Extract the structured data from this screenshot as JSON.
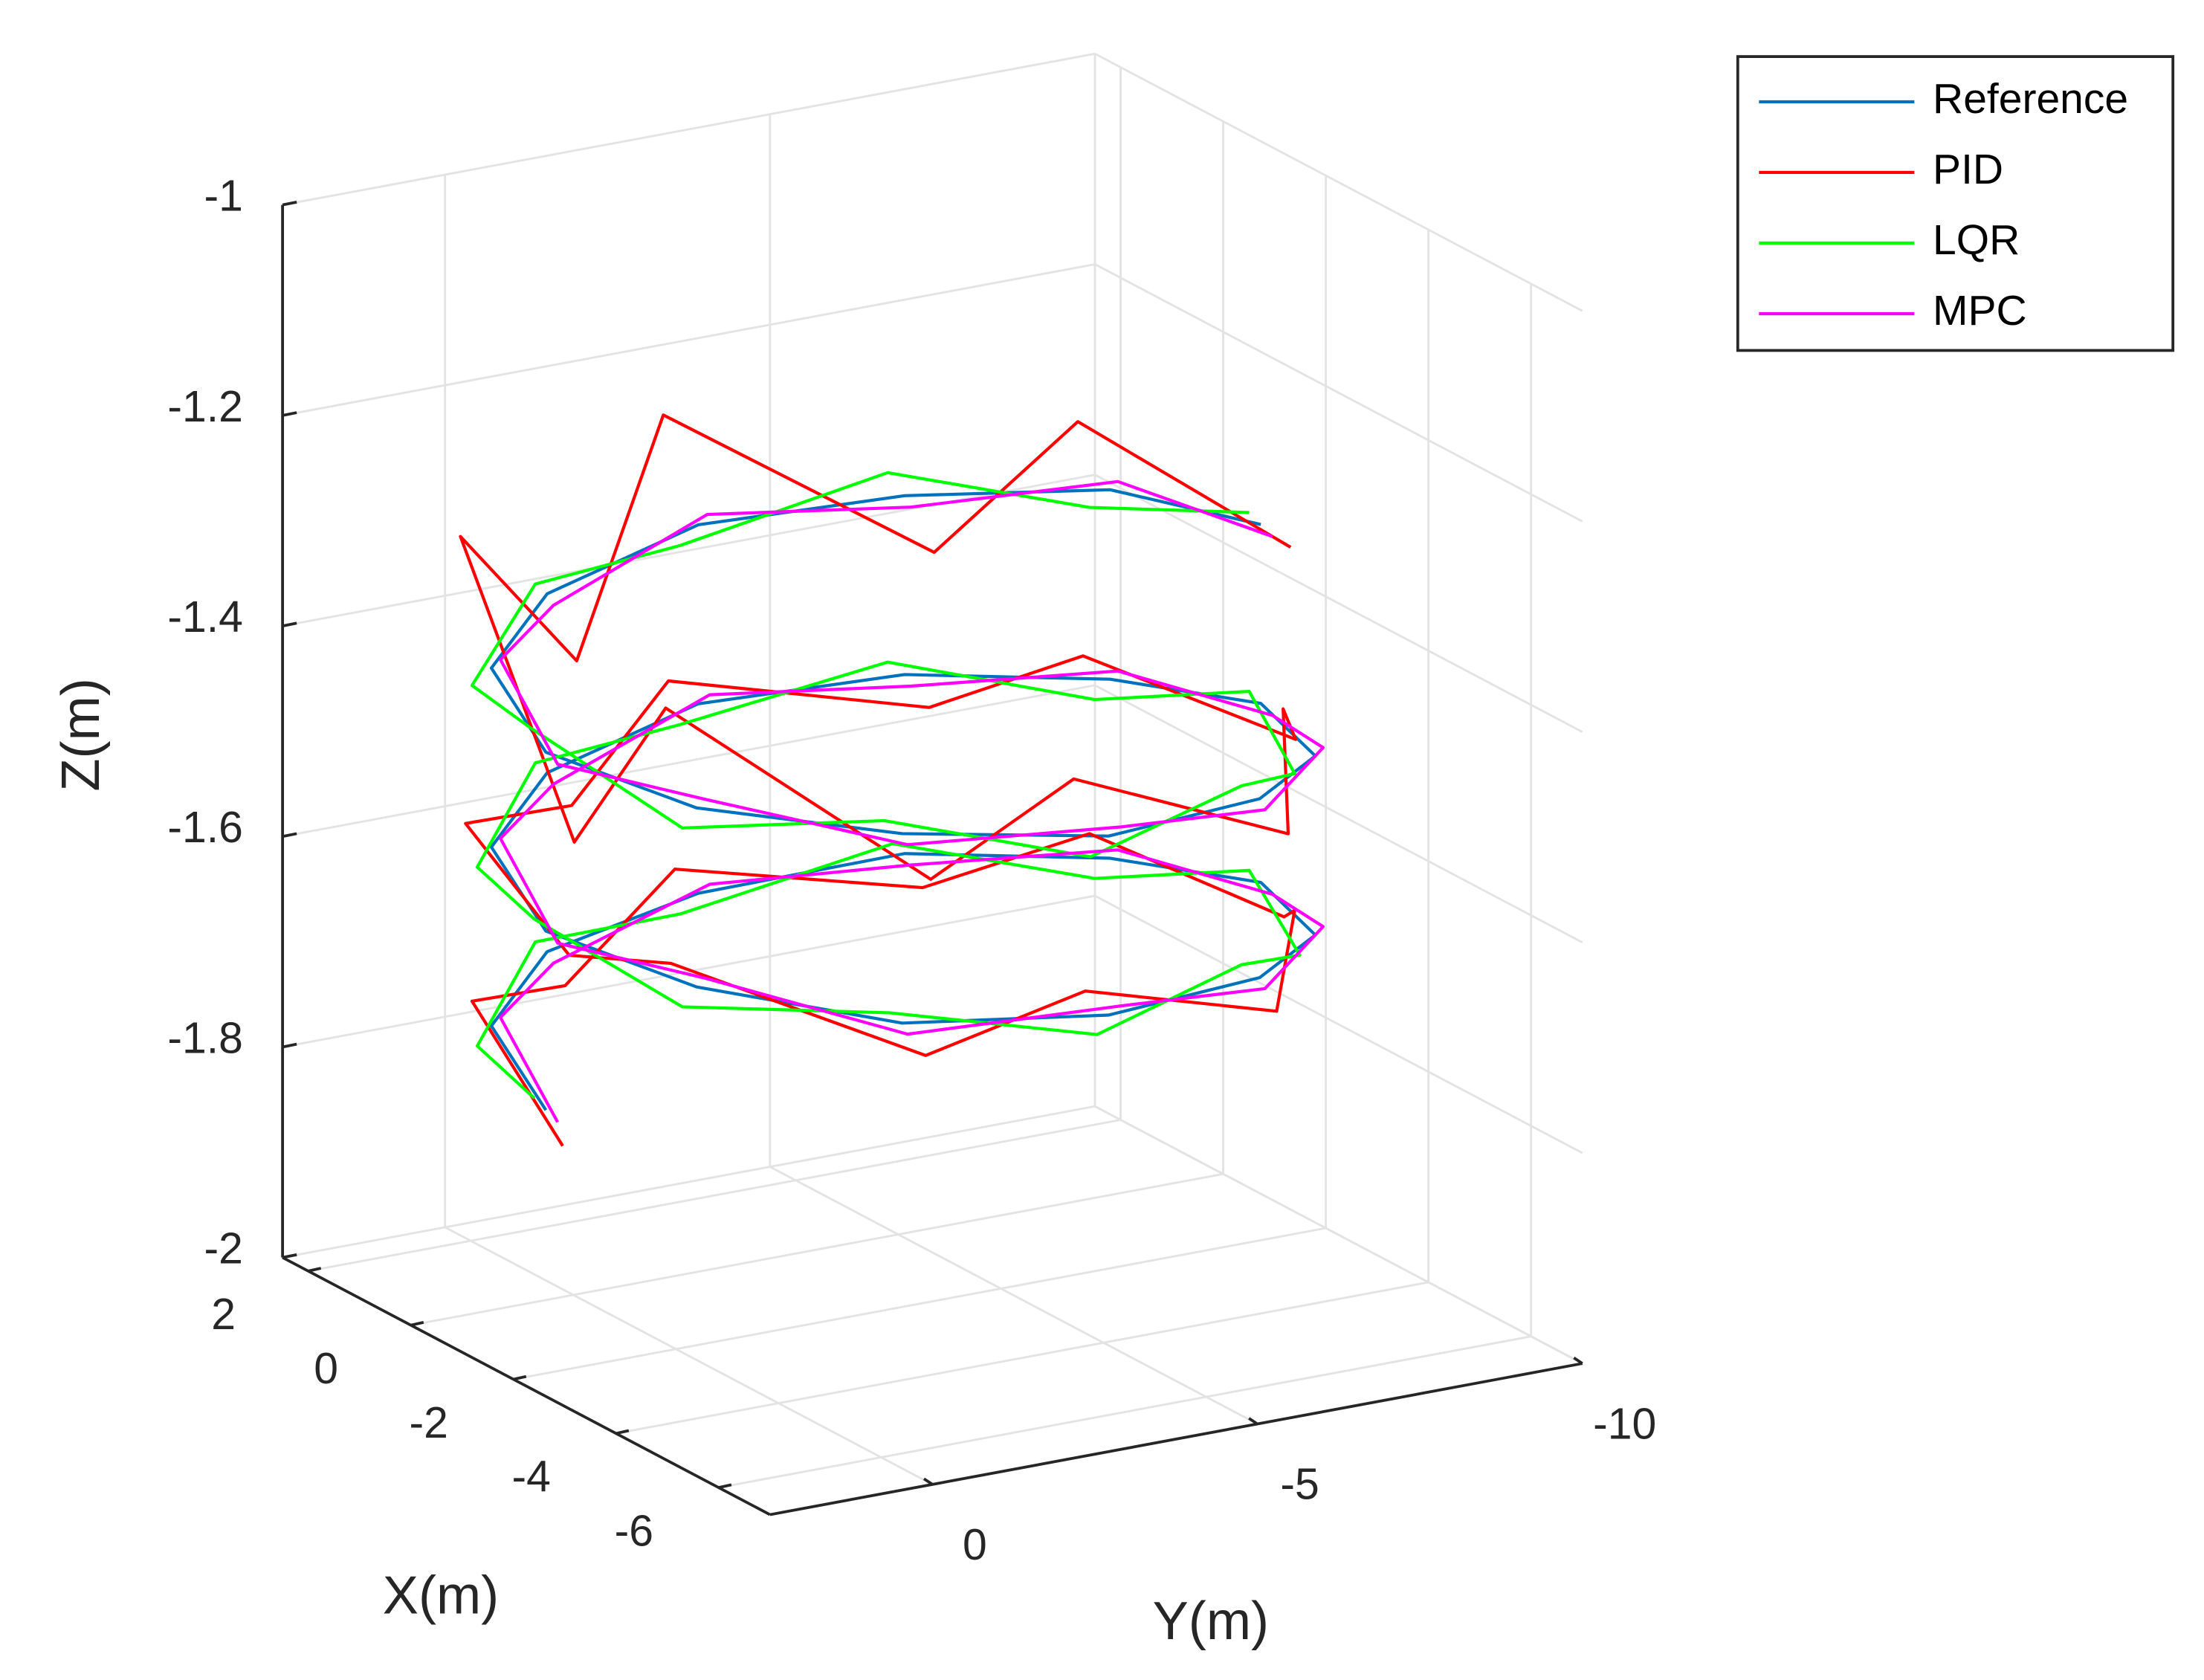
{
  "chart_data": {
    "type": "line3d",
    "xlabel": "X(m)",
    "ylabel": "Y(m)",
    "zlabel": "Z(m)",
    "xlim": [
      -7,
      2.5
    ],
    "ylim": [
      -10,
      2.5
    ],
    "zlim": [
      -2,
      -1
    ],
    "xticks": [
      -6,
      -4,
      -2,
      0,
      2
    ],
    "yticks": [
      -10,
      -5,
      0
    ],
    "zticks": [
      -2,
      -1.8,
      -1.6,
      -1.4,
      -1.2,
      -1
    ],
    "grid": true,
    "legend": "upper right",
    "series": [
      {
        "name": "Reference",
        "color": "#0072bd",
        "x": [
          -2,
          0,
          1.46,
          2,
          1.46,
          0,
          -2,
          -4,
          -5.46,
          -6,
          -5.46,
          -4,
          -2,
          0,
          1.46,
          2,
          1.46,
          0,
          -2,
          -4,
          -5.46,
          -6,
          -5.46,
          -4,
          -2,
          0,
          1.46,
          2,
          1.46,
          0,
          -2
        ],
        "y": [
          -9,
          -8.26,
          -6.25,
          -3.5,
          -0.75,
          1.26,
          2,
          1.26,
          -0.75,
          -3.5,
          -6.25,
          -8.26,
          -9,
          -8.26,
          -6.25,
          -3.5,
          -0.75,
          1.26,
          2,
          1.26,
          -0.75,
          -3.5,
          -6.25,
          -8.26,
          -9,
          -8.26,
          -6.25,
          -3.5,
          -0.75,
          1.26,
          2
        ],
        "z": [
          -1.32,
          -1.33,
          -1.35,
          -1.36,
          -1.38,
          -1.39,
          -1.41,
          -1.42,
          -1.43,
          -1.45,
          -1.46,
          -1.48,
          -1.49,
          -1.51,
          -1.52,
          -1.53,
          -1.55,
          -1.56,
          -1.58,
          -1.59,
          -1.61,
          -1.62,
          -1.63,
          -1.65,
          -1.66,
          -1.68,
          -1.69,
          -1.71,
          -1.72,
          -1.73,
          -1.75
        ]
      },
      {
        "name": "PID",
        "color": "#ff0000",
        "x": [
          -2.2,
          0.3,
          1.2,
          2.3,
          1.2,
          0.3,
          -2.3,
          -3.7,
          -5.7,
          -5.7,
          -5.7,
          -3.7,
          -2.3,
          0.2,
          1.3,
          2.2,
          1.3,
          0.2,
          -2.2,
          -3.8,
          -5.6,
          -5.8,
          -5.6,
          -3.8,
          -2.2,
          0.2,
          1.3,
          2.2,
          1.3,
          0.2,
          -2.2
        ],
        "y": [
          -9.3,
          -8,
          -6.5,
          -3.2,
          -1,
          1.5,
          1.8,
          1.5,
          -1,
          -3.2,
          -6.5,
          -8,
          -9.3,
          -8,
          -6.5,
          -3.2,
          -1,
          1.5,
          1.8,
          1.5,
          -1,
          -3.3,
          -6.4,
          -8.1,
          -9.2,
          -8.1,
          -6.4,
          -3.3,
          -0.9,
          1.4,
          1.9
        ],
        "z": [
          -1.34,
          -1.27,
          -1.4,
          -1.26,
          -1.44,
          -1.27,
          -1.49,
          -1.33,
          -1.47,
          -1.4,
          -1.49,
          -1.44,
          -1.52,
          -1.49,
          -1.55,
          -1.51,
          -1.58,
          -1.54,
          -1.6,
          -1.57,
          -1.64,
          -1.6,
          -1.66,
          -1.63,
          -1.69,
          -1.66,
          -1.72,
          -1.69,
          -1.75,
          -1.71,
          -1.78
        ]
      },
      {
        "name": "LQR",
        "color": "#00ff00",
        "x": [
          -1.9,
          0.2,
          1.6,
          2.1,
          1.5,
          0.2,
          -1.8,
          -3.9,
          -5.3,
          -5.9,
          -5.3,
          -3.8,
          -1.9,
          0.1,
          1.6,
          2.1,
          1.5,
          0.1,
          -1.9,
          -3.9,
          -5.4,
          -5.9,
          -5.3,
          -3.9,
          -1.9,
          0.1,
          1.5,
          2.1,
          1.5,
          0.1,
          -1.9
        ],
        "y": [
          -8.9,
          -8.1,
          -6.1,
          -3.3,
          -0.6,
          1.4,
          2.1,
          1.4,
          -0.6,
          -3.3,
          -6.1,
          -8.1,
          -8.9,
          -8.1,
          -6.1,
          -3.3,
          -0.6,
          1.4,
          2.1,
          1.4,
          -0.6,
          -3.4,
          -6.1,
          -8.1,
          -8.9,
          -8.1,
          -6.1,
          -3.3,
          -0.6,
          1.4,
          2.1
        ],
        "z": [
          -1.31,
          -1.35,
          -1.33,
          -1.38,
          -1.37,
          -1.41,
          -1.39,
          -1.44,
          -1.42,
          -1.47,
          -1.45,
          -1.5,
          -1.48,
          -1.53,
          -1.51,
          -1.55,
          -1.54,
          -1.58,
          -1.57,
          -1.61,
          -1.6,
          -1.64,
          -1.62,
          -1.67,
          -1.65,
          -1.7,
          -1.68,
          -1.73,
          -1.71,
          -1.75,
          -1.74
        ]
      },
      {
        "name": "MPC",
        "color": "#ff00ff",
        "x": [
          -2.1,
          -0.1,
          1.4,
          1.95,
          1.4,
          -0.1,
          -2.1,
          -4.1,
          -5.5,
          -6.1,
          -5.5,
          -4.1,
          -2.1,
          -0.1,
          1.4,
          1.9,
          1.4,
          -0.1,
          -2.1,
          -4.1,
          -5.5,
          -6.1,
          -5.5,
          -4.1,
          -2.1,
          -0.1,
          1.4,
          1.9,
          1.4,
          -0.1,
          -2.1
        ],
        "y": [
          -9.1,
          -8.3,
          -6.3,
          -3.6,
          -0.8,
          1.2,
          1.9,
          1.2,
          -0.8,
          -3.6,
          -6.3,
          -8.3,
          -9.1,
          -8.3,
          -6.3,
          -3.6,
          -0.8,
          1.2,
          1.9,
          1.2,
          -0.8,
          -3.6,
          -6.3,
          -8.3,
          -9.1,
          -8.3,
          -6.3,
          -3.6,
          -0.8,
          1.2,
          1.9
        ],
        "z": [
          -1.33,
          -1.32,
          -1.36,
          -1.35,
          -1.39,
          -1.38,
          -1.42,
          -1.41,
          -1.44,
          -1.44,
          -1.47,
          -1.47,
          -1.5,
          -1.5,
          -1.53,
          -1.52,
          -1.56,
          -1.55,
          -1.59,
          -1.58,
          -1.62,
          -1.61,
          -1.64,
          -1.64,
          -1.67,
          -1.67,
          -1.7,
          -1.7,
          -1.73,
          -1.72,
          -1.76
        ]
      }
    ]
  }
}
